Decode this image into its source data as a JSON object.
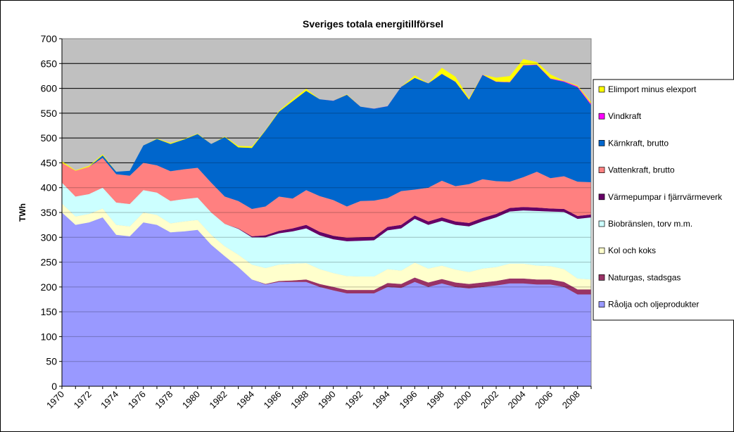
{
  "chart_data": {
    "type": "stacked_area",
    "title": "Sveriges totala energitillförsel",
    "y_label": "TWh",
    "categories": [
      "1970",
      null,
      "1972",
      null,
      "1974",
      null,
      "1976",
      null,
      "1978",
      null,
      "1980",
      null,
      "1982",
      null,
      "1984",
      null,
      "1986",
      null,
      "1988",
      null,
      "1990",
      null,
      "1992",
      null,
      "1994",
      null,
      "1996",
      null,
      "1998",
      null,
      "2000",
      null,
      "2002",
      null,
      "2004",
      null,
      "2006",
      null,
      "2008",
      null
    ],
    "ylim": [
      0,
      700
    ],
    "yticks": [
      0,
      50,
      100,
      150,
      200,
      250,
      300,
      350,
      400,
      450,
      500,
      550,
      600,
      650,
      700
    ],
    "grid": true,
    "legend": "right",
    "series": [
      {
        "name": "Råolja och oljeprodukter",
        "color": "#9999ff",
        "values": [
          350,
          325,
          330,
          340,
          305,
          302,
          330,
          325,
          310,
          312,
          315,
          285,
          262,
          240,
          215,
          205,
          210,
          210,
          210,
          200,
          193,
          187,
          187,
          187,
          200,
          198,
          210,
          200,
          207,
          200,
          197,
          200,
          203,
          207,
          207,
          205,
          205,
          200,
          185,
          185
        ]
      },
      {
        "name": "Naturgas, stadsgas",
        "color": "#993366",
        "values": [
          0,
          0,
          0,
          0,
          0,
          0,
          0,
          0,
          0,
          0,
          0,
          0,
          0,
          0,
          0,
          1,
          2,
          3,
          5,
          6,
          7,
          7,
          7,
          7,
          8,
          8,
          9,
          9,
          9,
          9,
          9,
          9,
          9,
          10,
          10,
          10,
          10,
          10,
          10,
          10
        ]
      },
      {
        "name": "Kol och koks",
        "color": "#ffffcc",
        "values": [
          18,
          17,
          17,
          18,
          20,
          20,
          20,
          20,
          18,
          20,
          20,
          20,
          20,
          25,
          30,
          32,
          33,
          34,
          33,
          30,
          28,
          28,
          27,
          27,
          28,
          27,
          30,
          28,
          27,
          26,
          24,
          28,
          28,
          30,
          30,
          28,
          27,
          26,
          22,
          20
        ]
      },
      {
        "name": "Biobränslen, torv m.m.",
        "color": "#ccffff",
        "values": [
          42,
          40,
          40,
          42,
          45,
          45,
          45,
          45,
          45,
          45,
          45,
          45,
          45,
          52,
          55,
          62,
          63,
          65,
          70,
          68,
          68,
          70,
          72,
          73,
          78,
          85,
          88,
          88,
          90,
          90,
          92,
          95,
          100,
          105,
          107,
          110,
          110,
          115,
          120,
          125
        ]
      },
      {
        "name": "Värmepumpar i fjärrvärmeverk",
        "color": "#660066",
        "values": [
          0,
          0,
          0,
          0,
          0,
          0,
          0,
          0,
          0,
          0,
          0,
          0,
          0,
          1,
          2,
          4,
          5,
          6,
          7,
          7,
          7,
          7,
          7,
          7,
          7,
          7,
          7,
          7,
          7,
          7,
          7,
          7,
          7,
          7,
          7,
          7,
          6,
          6,
          6,
          6
        ]
      },
      {
        "name": "Vattenkraft, brutto",
        "color": "#ff8080",
        "values": [
          40,
          52,
          55,
          60,
          57,
          57,
          55,
          55,
          60,
          60,
          60,
          60,
          55,
          55,
          55,
          58,
          69,
          60,
          70,
          72,
          72,
          63,
          73,
          73,
          58,
          68,
          52,
          68,
          74,
          71,
          78,
          78,
          66,
          53,
          60,
          72,
          61,
          66,
          69,
          65
        ]
      },
      {
        "name": "Kärnkraft, brutto",
        "color": "#0066cc",
        "values": [
          0,
          0,
          0,
          5,
          5,
          10,
          35,
          53,
          55,
          60,
          68,
          78,
          120,
          108,
          123,
          153,
          171,
          196,
          200,
          195,
          200,
          225,
          190,
          185,
          185,
          210,
          225,
          210,
          215,
          210,
          170,
          210,
          200,
          200,
          225,
          215,
          200,
          190,
          190,
          155
        ]
      },
      {
        "name": "Vindkraft",
        "color": "#ff00ff",
        "values": [
          0,
          0,
          0,
          0,
          0,
          0,
          0,
          0,
          0,
          0,
          0,
          0,
          0,
          0,
          0,
          0,
          0,
          0,
          0,
          0,
          0.1,
          0.1,
          0.1,
          0.1,
          0.1,
          0.1,
          0.2,
          0.2,
          0.3,
          0.4,
          0.5,
          0.5,
          0.6,
          0.7,
          0.9,
          0.9,
          1,
          1.4,
          2,
          2.5
        ]
      },
      {
        "name": "Elimport minus elexport",
        "color": "#ffff00",
        "values": [
          3,
          1,
          2,
          2,
          0,
          0,
          0,
          1,
          2,
          1,
          1,
          0,
          1,
          3,
          3,
          1,
          2,
          4,
          4,
          0,
          0,
          1,
          0,
          0,
          0,
          0,
          5,
          0,
          12,
          10,
          3,
          0,
          8,
          12,
          12,
          5,
          8,
          1,
          2,
          4
        ]
      }
    ]
  }
}
